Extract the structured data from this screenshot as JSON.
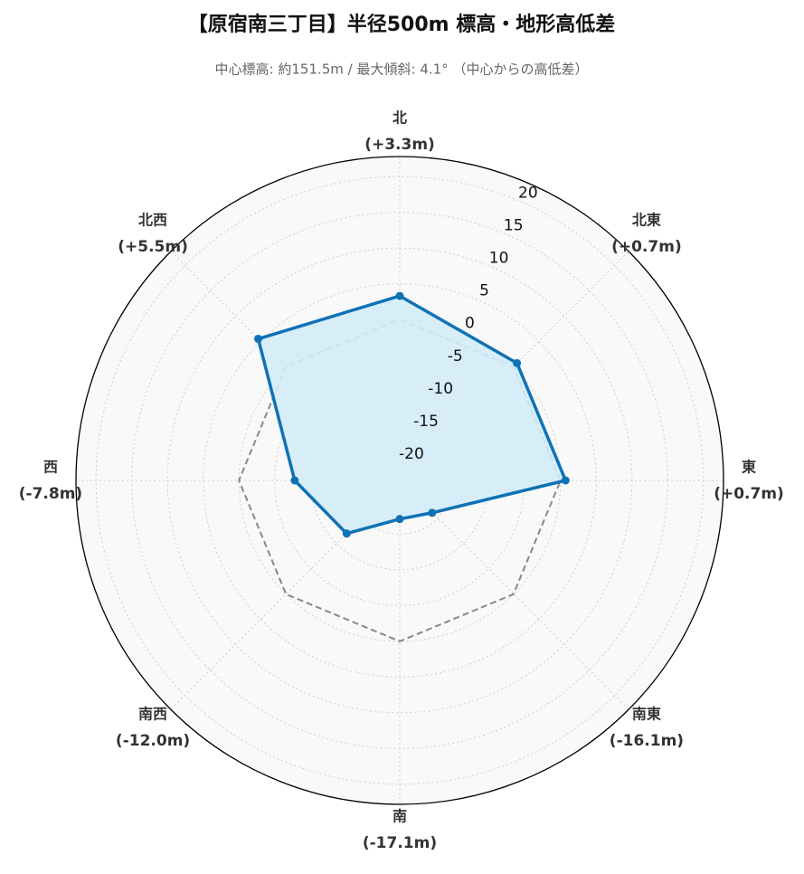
{
  "chart_data": {
    "type": "radar",
    "title": "【原宿南三丁目】半径500m 標高・地形高低差",
    "subtitle": "中心標高: 約151.5m / 最大傾斜: 4.1° （中心からの高低差）",
    "categories": [
      "北",
      "北東",
      "東",
      "南東",
      "南",
      "南西",
      "西",
      "北西"
    ],
    "series": [
      {
        "color": "#0f72b5",
        "fill": "#d3ecf8",
        "values": [
          3.3,
          0.7,
          0.7,
          -16.1,
          -17.1,
          -12.0,
          -7.8,
          5.5
        ],
        "value_labels": [
          "(+3.3m)",
          "(+0.7m)",
          "(+0.7m)",
          "(-16.1m)",
          "(-17.1m)",
          "(-12.0m)",
          "(-7.8m)",
          "(+5.5m)"
        ]
      },
      {
        "color": "#888888",
        "line_style": "dashed",
        "values": [
          0,
          0,
          0,
          0,
          0,
          0,
          0,
          0
        ]
      }
    ],
    "ylim": [
      -22.5,
      22.8
    ],
    "yticks": [
      -20,
      -15,
      -10,
      -5,
      0,
      5,
      10,
      15,
      20
    ],
    "grid": true
  }
}
